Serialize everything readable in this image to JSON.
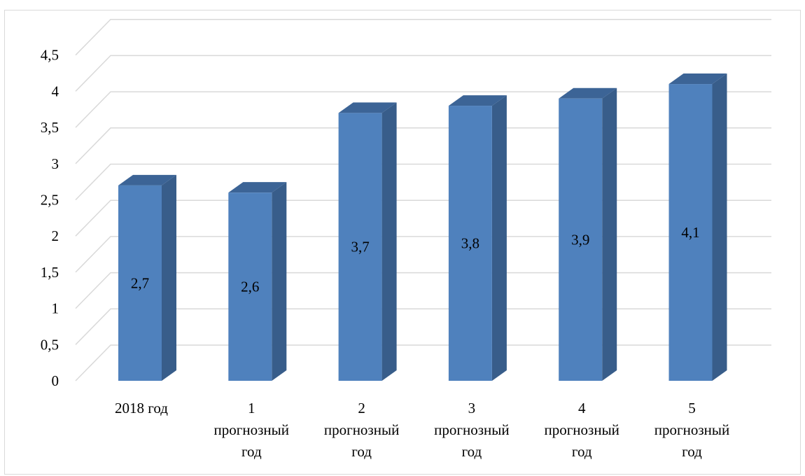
{
  "chart_data": {
    "type": "bar",
    "style": "3d-column",
    "categories": [
      [
        "2018 год"
      ],
      [
        "1",
        "прогнозный",
        "год"
      ],
      [
        "2",
        "прогнозный",
        "год"
      ],
      [
        "3",
        "прогнозный",
        "год"
      ],
      [
        "4",
        "прогнозный",
        "год"
      ],
      [
        "5",
        "прогнозный",
        "год"
      ]
    ],
    "values": [
      2.7,
      2.6,
      3.7,
      3.8,
      3.9,
      4.1
    ],
    "data_labels": [
      "2,7",
      "2,6",
      "3,7",
      "3,8",
      "3,9",
      "4,1"
    ],
    "ylim": [
      0,
      4.5
    ],
    "yticks": [
      0,
      0.5,
      1,
      1.5,
      2,
      2.5,
      3,
      3.5,
      4,
      4.5
    ],
    "ytick_labels": [
      "0",
      "0,5",
      "1",
      "1,5",
      "2",
      "2,5",
      "3",
      "3,5",
      "4",
      "4,5"
    ],
    "grid": true,
    "legend": "none",
    "colors": {
      "bar_front": "#4f81bd",
      "bar_side": "#385d8a",
      "bar_top": "#3c6496",
      "grid": "#d9d9d9"
    }
  }
}
